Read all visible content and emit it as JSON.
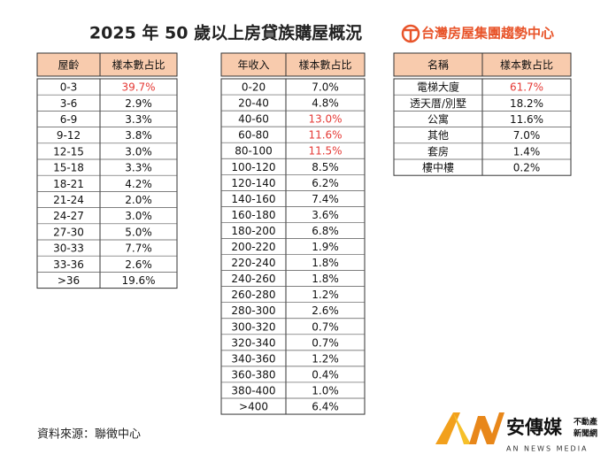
{
  "header": {
    "title": "2025 年 50 歲以上房貸族購屋概況",
    "brand": "台灣房屋集團趨勢中心"
  },
  "highlight_color": "#e53935",
  "tables": [
    {
      "columns": [
        "屋齡",
        "樣本數占比"
      ],
      "red_rows": [
        0
      ],
      "rows": [
        [
          "0-3",
          "39.7%"
        ],
        [
          "3-6",
          "2.9%"
        ],
        [
          "6-9",
          "3.3%"
        ],
        [
          "9-12",
          "3.8%"
        ],
        [
          "12-15",
          "3.0%"
        ],
        [
          "15-18",
          "3.3%"
        ],
        [
          "18-21",
          "4.2%"
        ],
        [
          "21-24",
          "2.0%"
        ],
        [
          "24-27",
          "3.0%"
        ],
        [
          "27-30",
          "5.0%"
        ],
        [
          "30-33",
          "7.7%"
        ],
        [
          "33-36",
          "2.6%"
        ],
        [
          ">36",
          "19.6%"
        ]
      ]
    },
    {
      "columns": [
        "年收入",
        "樣本數占比"
      ],
      "red_rows": [
        2,
        3,
        4
      ],
      "rows": [
        [
          "0-20",
          "7.0%"
        ],
        [
          "20-40",
          "4.8%"
        ],
        [
          "40-60",
          "13.0%"
        ],
        [
          "60-80",
          "11.6%"
        ],
        [
          "80-100",
          "11.5%"
        ],
        [
          "100-120",
          "8.5%"
        ],
        [
          "120-140",
          "6.2%"
        ],
        [
          "140-160",
          "7.4%"
        ],
        [
          "160-180",
          "3.6%"
        ],
        [
          "180-200",
          "6.8%"
        ],
        [
          "200-220",
          "1.9%"
        ],
        [
          "220-240",
          "1.8%"
        ],
        [
          "240-260",
          "1.8%"
        ],
        [
          "260-280",
          "1.2%"
        ],
        [
          "280-300",
          "2.6%"
        ],
        [
          "300-320",
          "0.7%"
        ],
        [
          "320-340",
          "0.7%"
        ],
        [
          "340-360",
          "1.2%"
        ],
        [
          "360-380",
          "0.4%"
        ],
        [
          "380-400",
          "1.0%"
        ],
        [
          ">400",
          "6.4%"
        ]
      ]
    },
    {
      "columns": [
        "名稱",
        "樣本數占比"
      ],
      "red_rows": [
        0
      ],
      "rows": [
        [
          "電梯大廈",
          "61.7%"
        ],
        [
          "透天厝/別墅",
          "18.2%"
        ],
        [
          "公寓",
          "11.6%"
        ],
        [
          "其他",
          "7.0%"
        ],
        [
          "套房",
          "1.4%"
        ],
        [
          "樓中樓",
          "0.2%"
        ]
      ]
    }
  ],
  "footer": {
    "source": "資料來源：聯徵中心"
  },
  "logo": {
    "mark": "AN",
    "name": "安傳媒",
    "line1": "不動產",
    "line2": "新聞網",
    "english": "AN NEWS MEDIA"
  }
}
